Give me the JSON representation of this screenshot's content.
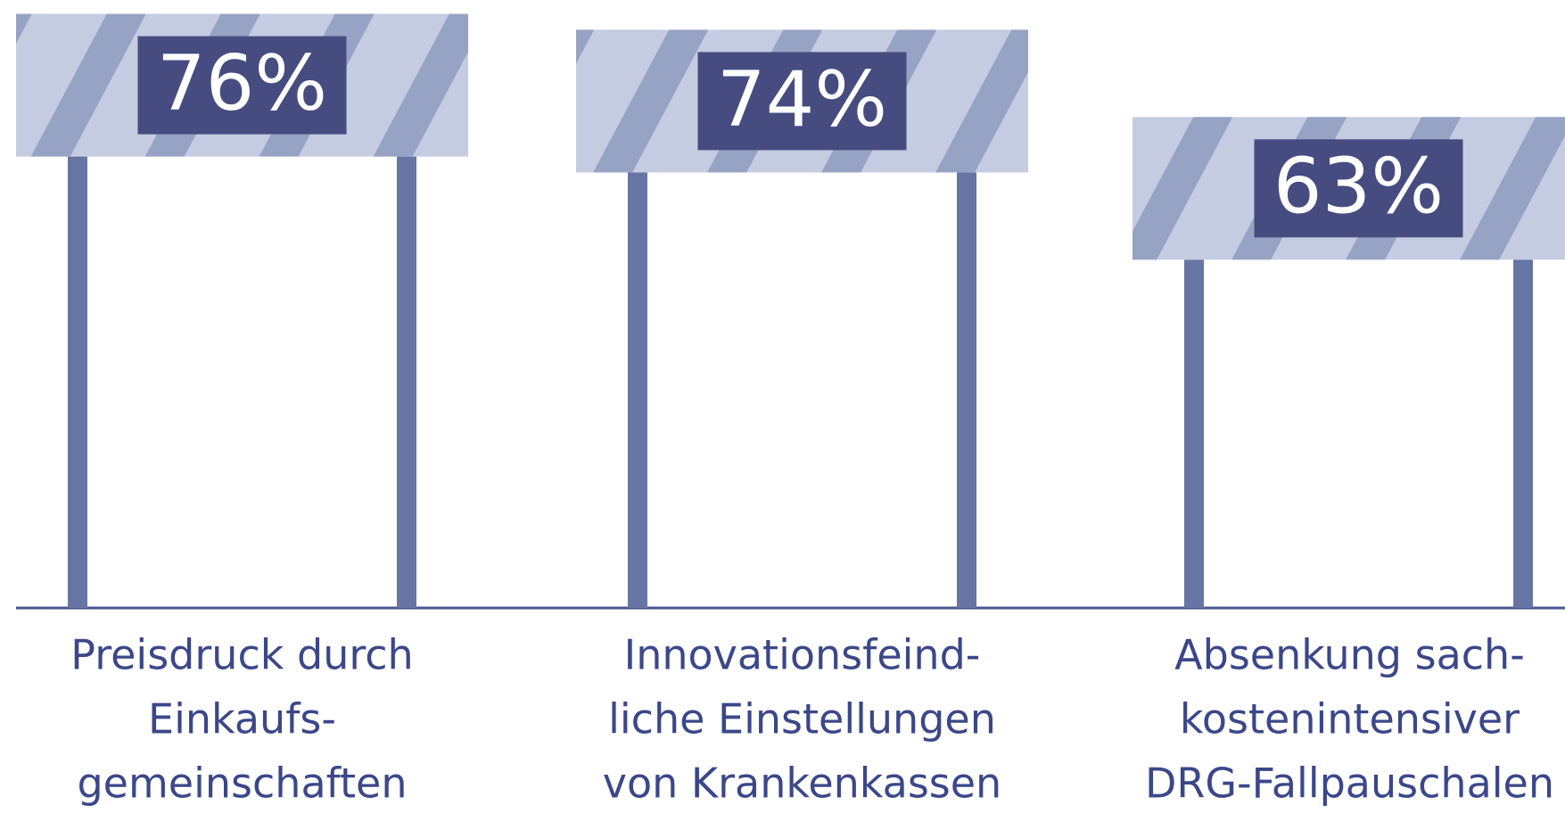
{
  "chart_data": {
    "type": "bar",
    "categories": [
      [
        "Preisdruck durch",
        "Einkaufs-",
        "gemeinschaften"
      ],
      [
        "Innovationsfeind-",
        "liche Einstellungen",
        "von Krankenkassen"
      ],
      [
        "Absenkung sach-",
        "kostenintensiver",
        "DRG-Fallpauschalen"
      ]
    ],
    "values": [
      76,
      74,
      63
    ],
    "value_labels": [
      "76%",
      "74%",
      "63%"
    ],
    "color": "#c5cbe0",
    "stripe_color": "#97a3c4",
    "post_color": "#6675a3",
    "label_box_color": "#464c80"
  }
}
